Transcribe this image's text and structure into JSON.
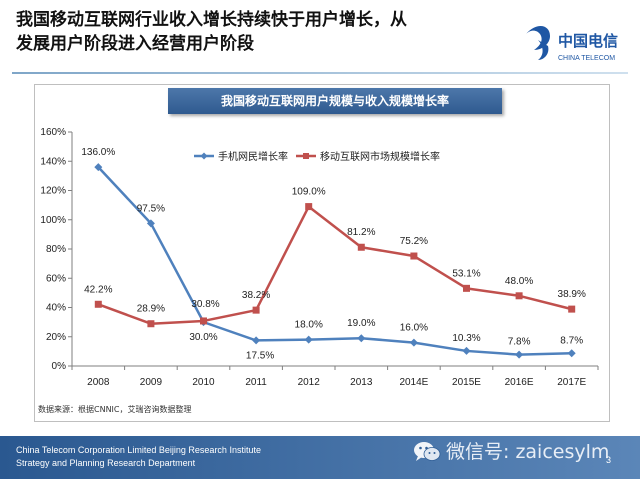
{
  "slide": {
    "title_line1": "我国移动互联网行业收入增长持续快于用户增长，从",
    "title_line2": "发展用户阶段进入经营用户阶段",
    "logo_text_cn": "中国电信",
    "logo_text_en": "CHINA TELECOM",
    "footer_line1": "China Telecom Corporation Limited Beijing Research Institute",
    "footer_line2": "Strategy and Planning Research Department",
    "watermark": "微信号: zaicesylm",
    "page_number": "3"
  },
  "colors": {
    "series_blue": "#4f81bd",
    "series_red": "#c0504d",
    "banner": "#3a659b",
    "footer": "#2f5e96",
    "brand": "#1f57a4"
  },
  "icons": {
    "logo": "china-telecom-logo",
    "wechat": "wechat-icon"
  },
  "chart_data": {
    "type": "line",
    "title": "我国移动互联网用户规模与收入规模增长率",
    "categories": [
      "2008",
      "2009",
      "2010",
      "2011",
      "2012",
      "2013",
      "2014E",
      "2015E",
      "2016E",
      "2017E"
    ],
    "series": [
      {
        "name": "手机网民增长率",
        "values": [
          136.0,
          97.5,
          30.0,
          17.5,
          18.0,
          19.0,
          16.0,
          10.3,
          7.8,
          8.7
        ],
        "labels": [
          "136.0%",
          "97.5%",
          "30.0%",
          "17.5%",
          "18.0%",
          "19.0%",
          "16.0%",
          "10.3%",
          "7.8%",
          "8.7%"
        ],
        "marker": "diamond",
        "color": "#4f81bd"
      },
      {
        "name": "移动互联网市场规模增长率",
        "values": [
          42.2,
          28.9,
          30.8,
          38.2,
          109.0,
          81.2,
          75.2,
          53.1,
          48.0,
          38.9
        ],
        "labels": [
          "42.2%",
          "28.9%",
          "30.8%",
          "38.2%",
          "109.0%",
          "81.2%",
          "75.2%",
          "53.1%",
          "48.0%",
          "38.9%"
        ],
        "marker": "square",
        "color": "#c0504d"
      }
    ],
    "ylim": [
      0,
      160
    ],
    "yticks": [
      "0%",
      "20%",
      "40%",
      "60%",
      "80%",
      "100%",
      "120%",
      "140%",
      "160%"
    ],
    "xlabel": "",
    "ylabel": "",
    "legend": "top-center",
    "grid": false,
    "source": "数据来源：根据CNNIC，艾瑞咨询数据整理"
  }
}
